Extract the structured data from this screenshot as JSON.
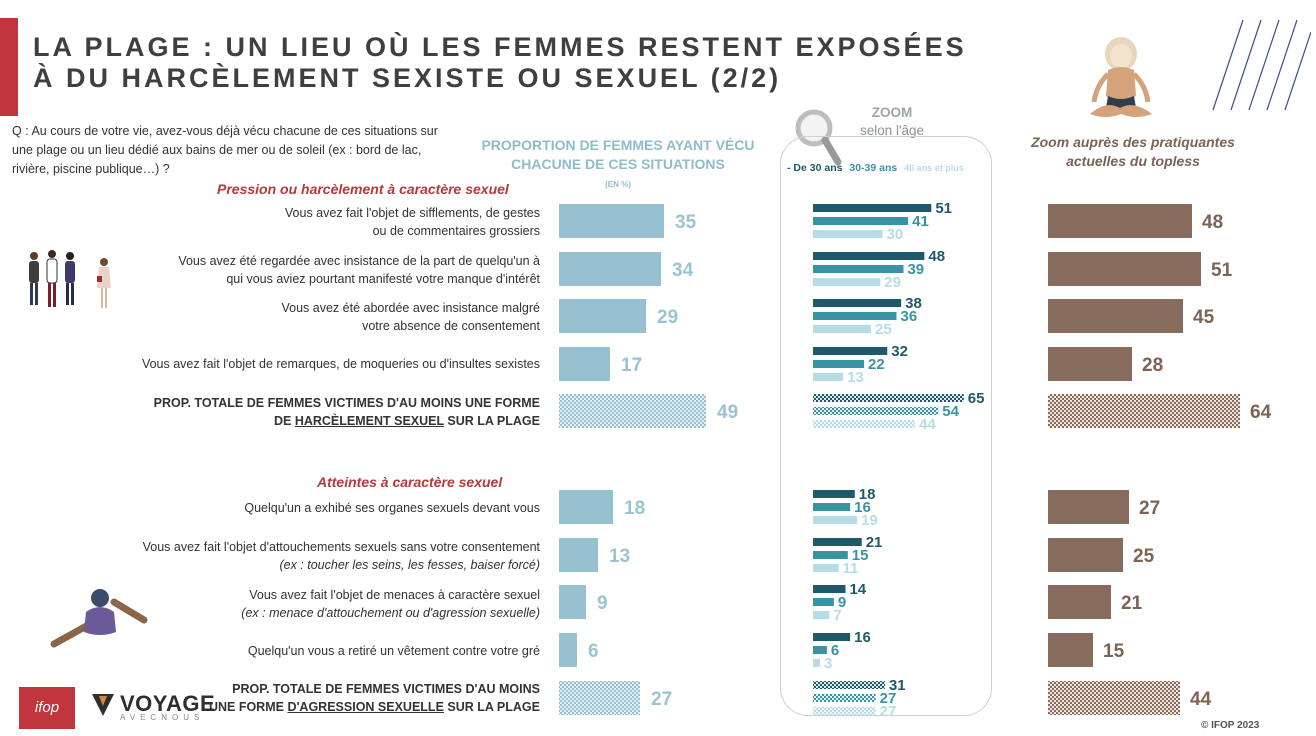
{
  "title": {
    "line1": "LA PLAGE : UN LIEU OÙ LES FEMMES RESTENT EXPOSÉES",
    "line2": "À DU HARCÈLEMENT SEXISTE OU SEXUEL (2/2)"
  },
  "question": "Q : Au cours de votre vie, avez-vous déjà vécu chacune de ces situations sur une plage ou un lieu dédié aux bains de mer ou de soleil (ex : bord de lac, rivière, piscine publique…) ?",
  "columns": {
    "main_header": "PROPORTION DE FEMMES AYANT VÉCU CHACUNE DE CES SITUATIONS",
    "main_unit": "(EN %)",
    "zoom_title": "ZOOM",
    "zoom_subtitle": "selon l'âge",
    "age_legend": [
      "- De 30 ans",
      "30-39 ans",
      "40 ans et plus"
    ],
    "topless_header": "Zoom auprès des pratiquantes actuelles du topless"
  },
  "colors": {
    "accent_red": "#c0363c",
    "main_bar": "#97c0d0",
    "age_under30": "#1e5a69",
    "age_30_39": "#3a93a3",
    "age_40plus": "#b6dce6",
    "topless_bar": "#876b5c",
    "section_title": "#b5393d"
  },
  "sections": [
    {
      "title": "Pression ou harcèlement à caractère sexuel",
      "rows": [
        {
          "label_lines": [
            "Vous avez fait l'objet de sifflements, de gestes",
            "ou de commentaires grossiers"
          ]
        },
        {
          "label_lines": [
            "Vous avez été regardée avec insistance de la part de quelqu'un à",
            "qui vous aviez pourtant manifesté votre manque d'intérêt"
          ]
        },
        {
          "label_lines": [
            "Vous avez été abordée avec insistance malgré",
            "votre absence de consentement"
          ]
        },
        {
          "label_lines": [
            "Vous avez fait l'objet de remarques, de moqueries ou d'insultes sexistes"
          ]
        }
      ],
      "total": {
        "prefix": "PROP. TOTALE DE FEMMES VICTIMES D'AU MOINS UNE FORME",
        "line2_pre": "DE ",
        "underlined": "HARCÈLEMENT SEXUEL",
        "line2_post": " SUR LA PLAGE"
      }
    },
    {
      "title": "Atteintes à caractère sexuel",
      "rows": [
        {
          "label_lines": [
            "Quelqu'un a exhibé ses organes sexuels devant vous"
          ]
        },
        {
          "label_lines": [
            "Vous avez fait l'objet d'attouchements sexuels sans votre consentement",
            "(ex : toucher les seins, les fesses, baiser forcé)"
          ]
        },
        {
          "label_lines": [
            "Vous avez fait l'objet de menaces à caractère sexuel",
            "(ex : menace d'attouchement ou d'agression sexuelle)"
          ]
        },
        {
          "label_lines": [
            "Quelqu'un vous a retiré un vêtement contre votre gré"
          ]
        }
      ],
      "total": {
        "prefix": "PROP. TOTALE DE FEMMES VICTIMES D'AU MOINS",
        "line2_pre": "UNE FORME ",
        "underlined": "D'AGRESSION SEXUELLE",
        "line2_post": " SUR LA PLAGE"
      }
    }
  ],
  "chart_data": [
    {
      "type": "bar",
      "title": "PROPORTION DE FEMMES AYANT VÉCU CHACUNE DE CES SITUATIONS",
      "unit": "%",
      "values": [
        35,
        34,
        29,
        17,
        49,
        18,
        13,
        9,
        6,
        27
      ],
      "total_rows": [
        4,
        9
      ]
    },
    {
      "type": "bar",
      "title": "ZOOM selon l'âge",
      "series": [
        {
          "name": "- De 30 ans",
          "values": [
            51,
            48,
            38,
            32,
            65,
            18,
            21,
            14,
            16,
            31
          ]
        },
        {
          "name": "30-39 ans",
          "values": [
            41,
            39,
            36,
            22,
            54,
            16,
            15,
            9,
            6,
            27
          ]
        },
        {
          "name": "40 ans et plus",
          "values": [
            30,
            29,
            25,
            13,
            44,
            19,
            11,
            7,
            3,
            27
          ]
        }
      ],
      "total_rows": [
        4,
        9
      ]
    },
    {
      "type": "bar",
      "title": "Zoom auprès des pratiquantes actuelles du topless",
      "values": [
        48,
        51,
        45,
        28,
        64,
        27,
        25,
        21,
        15,
        44
      ],
      "total_rows": [
        4,
        9
      ]
    }
  ],
  "footer": {
    "copyright": "© IFOP 2023",
    "logo_ifop": "ifop",
    "logo_voyage": "VOYAGE",
    "logo_voyage_sub": "AVECNOUS"
  }
}
